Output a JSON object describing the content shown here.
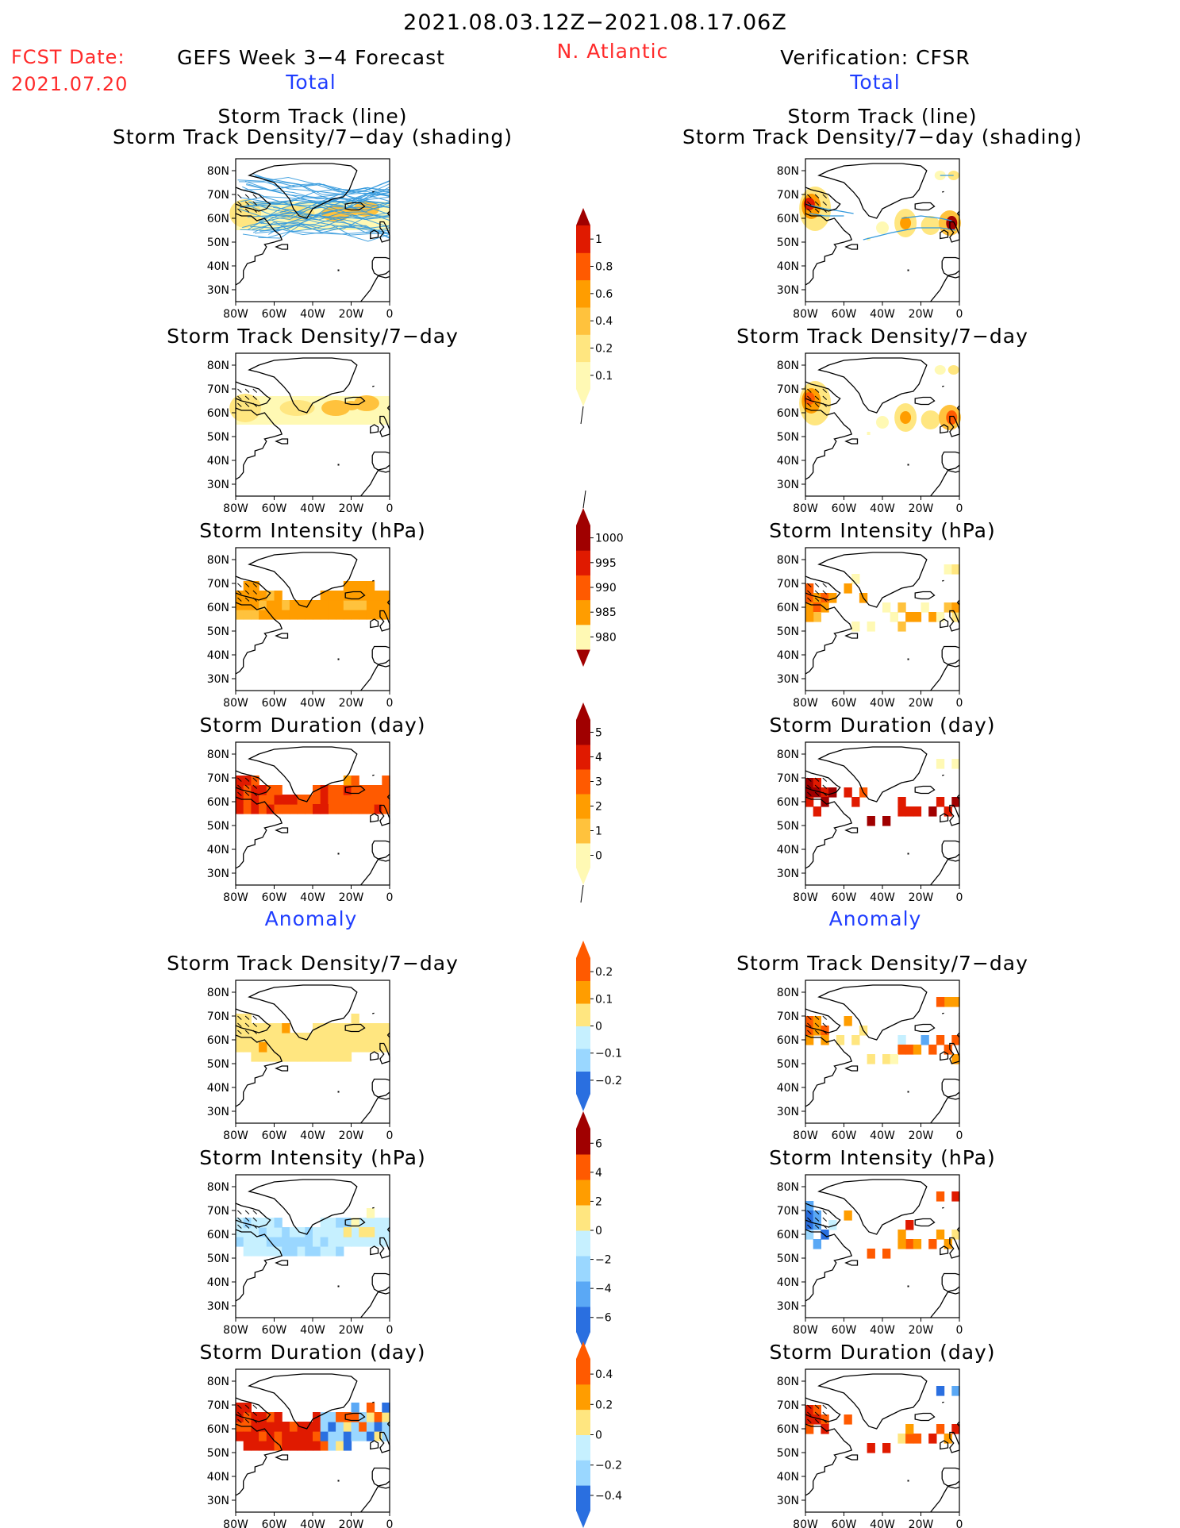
{
  "header": {
    "date_range": "2021.08.03.12Z−2021.08.17.06Z",
    "region": "N. Atlantic",
    "fcst_label": "FCST Date:",
    "fcst_date": "2021.07.20",
    "left_title": "GEFS Week 3−4 Forecast",
    "right_title": "Verification: CFSR",
    "total_label": "Total",
    "anomaly_label": "Anomaly"
  },
  "panel_titles": {
    "track_line": "Storm Track (line)",
    "track_shading": "Storm Track Density/7−day (shading)",
    "density": "Storm Track Density/7−day",
    "intensity": "Storm Intensity (hPa)",
    "duration": "Storm Duration (day)"
  },
  "axis": {
    "lat_labels": [
      "80N",
      "70N",
      "60N",
      "50N",
      "40N",
      "30N"
    ],
    "lon_labels": [
      "80W",
      "60W",
      "40W",
      "20W",
      "0"
    ]
  },
  "colors": {
    "warm": [
      "#fff9b4",
      "#ffe680",
      "#ffc23d",
      "#ff9d00",
      "#ff5a00",
      "#e01a00",
      "#a00000"
    ],
    "cool": [
      "#c6f0ff",
      "#9ad7ff",
      "#5aa8f5",
      "#2a6fe0"
    ],
    "track_line": "#3399dd",
    "title_red": "#ff2a2a",
    "title_blue": "#1f3dff"
  },
  "colorbars": [
    {
      "id": "density_total",
      "labels": [
        "1",
        "0.8",
        "0.6",
        "0.4",
        "0.2",
        "0.1"
      ]
    },
    {
      "id": "intensity_total",
      "labels": [
        "1000",
        "995",
        "990",
        "985",
        "980"
      ]
    },
    {
      "id": "duration_total",
      "labels": [
        "5",
        "4",
        "3",
        "2",
        "1",
        "0"
      ]
    },
    {
      "id": "density_anom",
      "labels": [
        "0.2",
        "0.1",
        "0",
        "−0.1",
        "−0.2"
      ]
    },
    {
      "id": "intensity_anom",
      "labels": [
        "6",
        "4",
        "2",
        "0",
        "−2",
        "−4",
        "−6"
      ]
    },
    {
      "id": "duration_anom",
      "labels": [
        "0.4",
        "0.2",
        "0",
        "−0.2",
        "−0.4"
      ]
    }
  ],
  "chart_data": [
    {
      "type": "heatmap",
      "panel": "GEFS total storm track (line) + density (shading)",
      "units": "storms per 7-day",
      "region": {
        "lon": [
          -80,
          0
        ],
        "lat": [
          25,
          85
        ]
      },
      "shaded_band": [
        {
          "lon": [
            -80,
            0
          ],
          "lat": [
            55,
            67
          ],
          "value_range": [
            0.1,
            0.4
          ]
        }
      ],
      "tracks": "many ensemble tracks across 50N-80N"
    },
    {
      "type": "heatmap",
      "panel": "CFSR total storm track (line) + density (shading)",
      "units": "storms per 7-day",
      "maxima": [
        {
          "lon": -78,
          "lat": 64,
          "value": 0.8
        },
        {
          "lon": -28,
          "lat": 58,
          "value": 0.6
        },
        {
          "lon": -5,
          "lat": 58,
          "value": 1.0
        }
      ]
    },
    {
      "type": "heatmap",
      "panel": "GEFS total density",
      "units": "storms per 7-day",
      "band": {
        "lon": [
          -80,
          0
        ],
        "lat": [
          55,
          67
        ],
        "value_range": [
          0.1,
          0.4
        ]
      }
    },
    {
      "type": "heatmap",
      "panel": "CFSR total density",
      "units": "storms per 7-day",
      "maxima": [
        {
          "lon": -78,
          "lat": 64,
          "value": 0.6
        },
        {
          "lon": -28,
          "lat": 58,
          "value": 0.6
        },
        {
          "lon": -5,
          "lat": 58,
          "value": 0.8
        }
      ]
    },
    {
      "type": "heatmap",
      "panel": "GEFS total intensity",
      "units": "hPa",
      "band": {
        "lon": [
          -80,
          0
        ],
        "lat": [
          55,
          68
        ],
        "value_range": [
          990,
          995
        ]
      }
    },
    {
      "type": "heatmap",
      "panel": "CFSR total intensity",
      "units": "hPa",
      "value_range": [
        985,
        1000
      ]
    },
    {
      "type": "heatmap",
      "panel": "GEFS total duration",
      "units": "day",
      "value_range": [
        3,
        5
      ]
    },
    {
      "type": "heatmap",
      "panel": "CFSR total duration",
      "units": "day",
      "value_range": [
        0,
        5
      ]
    },
    {
      "type": "heatmap",
      "panel": "GEFS anomaly density",
      "units": "storms per 7-day",
      "value_range": [
        0,
        0.1
      ]
    },
    {
      "type": "heatmap",
      "panel": "CFSR anomaly density",
      "units": "storms per 7-day",
      "value_range": [
        -0.1,
        0.2
      ]
    },
    {
      "type": "heatmap",
      "panel": "GEFS anomaly intensity",
      "units": "hPa",
      "value_range": [
        -4,
        2
      ]
    },
    {
      "type": "heatmap",
      "panel": "CFSR anomaly intensity",
      "units": "hPa",
      "value_range": [
        -6,
        6
      ]
    },
    {
      "type": "heatmap",
      "panel": "GEFS anomaly duration",
      "units": "day",
      "value_range": [
        -0.4,
        0.4
      ]
    },
    {
      "type": "heatmap",
      "panel": "CFSR anomaly duration",
      "units": "day",
      "value_range": [
        -0.4,
        0.4
      ]
    }
  ]
}
